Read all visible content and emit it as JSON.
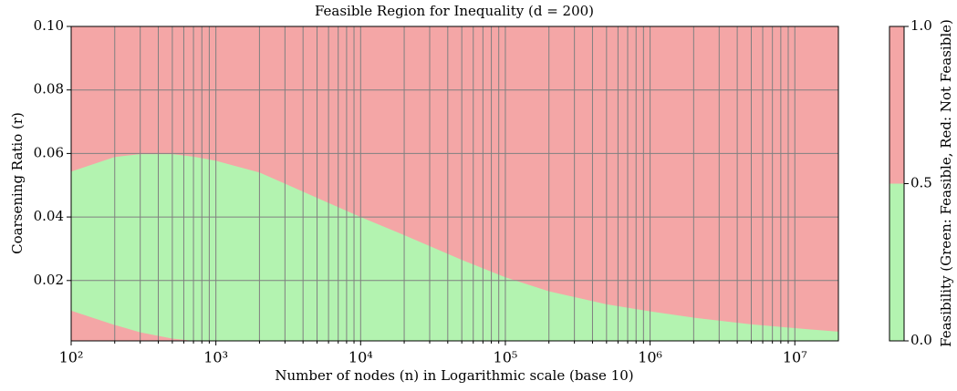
{
  "chart_data": {
    "type": "region",
    "title": "Feasible Region for Inequality (d = 200)",
    "xlabel": "Number of nodes (n) in Logarithmic scale (base 10)",
    "ylabel": "Coarsening Ratio (r)",
    "x": [
      100,
      200,
      300,
      500,
      700,
      1000,
      2000,
      3000,
      5000,
      10000,
      20000,
      50000,
      100000,
      200000,
      500000,
      1000000,
      2000000,
      5000000,
      10000000,
      20000000
    ],
    "upper": [
      0.0543,
      0.0589,
      0.0598,
      0.0598,
      0.059,
      0.0577,
      0.054,
      0.0505,
      0.046,
      0.04,
      0.0343,
      0.0265,
      0.021,
      0.0166,
      0.0125,
      0.0103,
      0.0083,
      0.0062,
      0.005,
      0.0039
    ],
    "lower": [
      0.0105,
      0.006,
      0.0037,
      0.0017,
      0.001,
      0.001,
      0.001,
      0.001,
      0.001,
      0.001,
      0.001,
      0.001,
      0.001,
      0.001,
      0.001,
      0.001,
      0.001,
      0.001,
      0.001,
      0.001
    ],
    "feasible_color": "#b3f3b0",
    "infeasible_color": "#f4a6a6",
    "xscale": "log",
    "xlim": [
      100,
      20000000
    ],
    "ylim": [
      0.001,
      0.1
    ],
    "xticks": [
      {
        "value": 100,
        "label": "10²"
      },
      {
        "value": 1000,
        "label": "10³"
      },
      {
        "value": 10000,
        "label": "10⁴"
      },
      {
        "value": 100000,
        "label": "10⁵"
      },
      {
        "value": 1000000,
        "label": "10⁶"
      },
      {
        "value": 10000000,
        "label": "10⁷"
      }
    ],
    "xminorticks": [
      200,
      300,
      400,
      500,
      600,
      700,
      800,
      900,
      2000,
      3000,
      4000,
      5000,
      6000,
      7000,
      8000,
      9000,
      20000,
      30000,
      40000,
      50000,
      60000,
      70000,
      80000,
      90000,
      200000,
      300000,
      400000,
      500000,
      600000,
      700000,
      800000,
      900000,
      2000000,
      3000000,
      4000000,
      5000000,
      6000000,
      7000000,
      8000000,
      9000000
    ],
    "yticks": [
      0.02,
      0.04,
      0.06,
      0.08,
      {
        "value": 0.1,
        "label": "0.10"
      }
    ],
    "grid": true,
    "colorbar": {
      "label": "Feasibility (Green: Feasible, Red: Not Feasible)",
      "lim": [
        0,
        1
      ],
      "threshold": 0.5,
      "ticks": [
        {
          "value": 0,
          "label": "0.0"
        },
        {
          "value": 0.5,
          "label": "0.5"
        },
        {
          "value": 1,
          "label": "1.0"
        }
      ]
    }
  }
}
